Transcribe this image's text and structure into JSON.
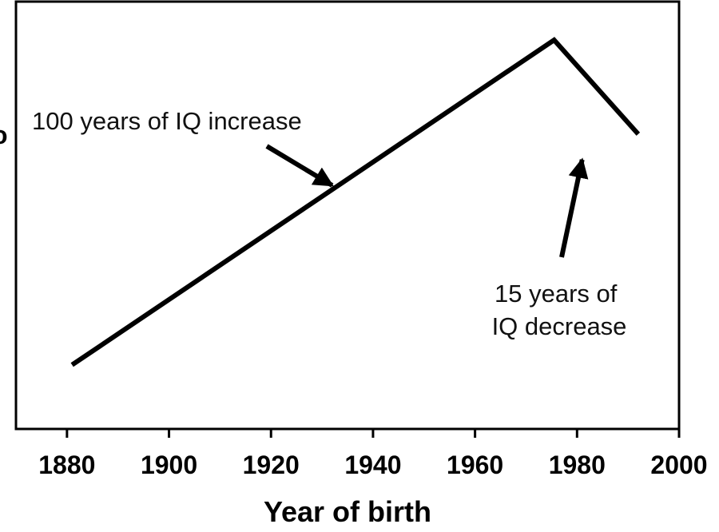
{
  "chart_data": {
    "type": "line",
    "title": "",
    "xlabel": "Year of birth",
    "ylabel": "",
    "xlim": [
      1870,
      2000
    ],
    "ylim": [
      0,
      1
    ],
    "xticks": [
      "1880",
      "1900",
      "1920",
      "1940",
      "1960",
      "1980",
      "2000"
    ],
    "grid": false,
    "series": [
      {
        "x": [
          1881,
          1975.5,
          1992
        ],
        "y": [
          0.15,
          0.91,
          0.69
        ]
      }
    ],
    "annotations": [
      {
        "lines": [
          "100 years of IQ increase"
        ],
        "arrow_target": [
          1932,
          0.57
        ]
      },
      {
        "lines": [
          "15 years of",
          "IQ decrease"
        ],
        "arrow_target": [
          1981,
          0.63
        ]
      }
    ],
    "edge_glyph": "o"
  }
}
